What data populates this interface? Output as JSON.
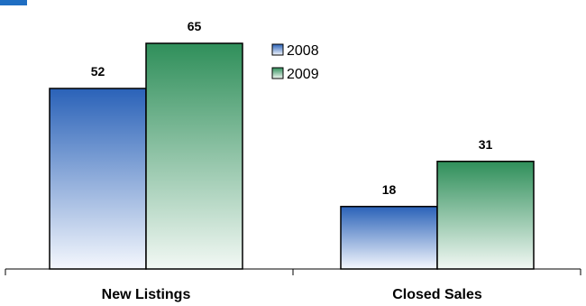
{
  "chart_data": {
    "type": "bar",
    "title": "",
    "categories": [
      "New Listings",
      "Closed Sales"
    ],
    "series": [
      {
        "name": "2008",
        "values": [
          52,
          18
        ],
        "color_top": "#2a62b8",
        "color_bottom": "#f4f7fd"
      },
      {
        "name": "2009",
        "values": [
          65,
          31
        ],
        "color_top": "#2f8f5a",
        "color_bottom": "#f2f8f4"
      }
    ],
    "ylim": [
      0,
      80
    ],
    "xlabel": "",
    "ylabel": "",
    "grid": false,
    "legend": "top-center",
    "data_labels": true
  }
}
